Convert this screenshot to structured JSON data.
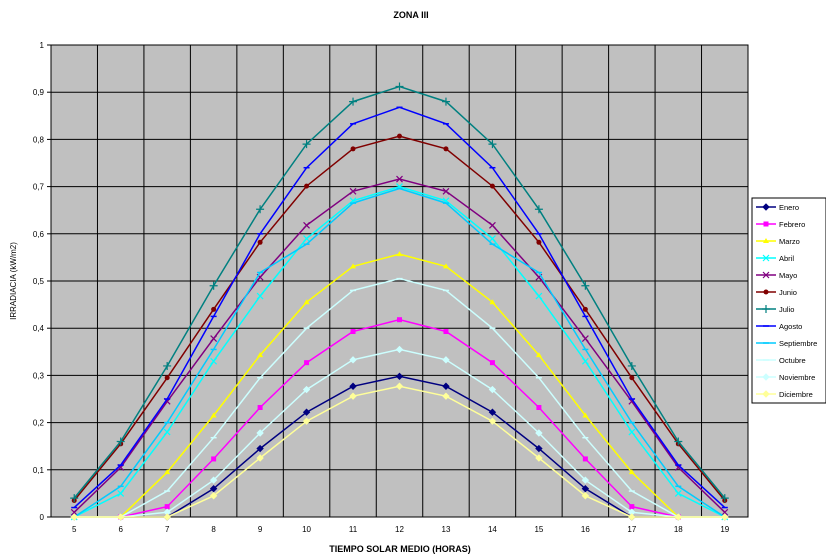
{
  "chart_data": {
    "type": "line",
    "title": "ZONA III",
    "xlabel": "TIEMPO SOLAR MEDIO (HORAS)",
    "ylabel": "IRRADIACIA (kW/m2)",
    "x": [
      5,
      6,
      7,
      8,
      9,
      10,
      11,
      12,
      13,
      14,
      15,
      16,
      17,
      18,
      19
    ],
    "xlim": [
      4.5,
      19.5
    ],
    "ylim": [
      0,
      1
    ],
    "yticks": [
      0,
      0.1,
      0.2,
      0.3,
      0.4,
      0.5,
      0.6,
      0.7,
      0.8,
      0.9,
      1
    ],
    "ytick_labels": [
      "0",
      "0,1",
      "0,2",
      "0,3",
      "0,4",
      "0,5",
      "0,6",
      "0,7",
      "0,8",
      "0,9",
      "1"
    ],
    "xtick_labels": [
      "5",
      "6",
      "7",
      "8",
      "9",
      "10",
      "11",
      "12",
      "13",
      "14",
      "15",
      "16",
      "17",
      "18",
      "19"
    ],
    "grid": true,
    "plot_background": "#c0c0c0",
    "legend_position": "right",
    "series": [
      {
        "name": "Enero",
        "color": "#000080",
        "marker": "diamond",
        "values": [
          0,
          0,
          0,
          0.06,
          0.145,
          0.222,
          0.277,
          0.298,
          0.277,
          0.222,
          0.145,
          0.06,
          0,
          0,
          0
        ]
      },
      {
        "name": "Febrero",
        "color": "#ff00ff",
        "marker": "square",
        "values": [
          0,
          0,
          0.022,
          0.123,
          0.232,
          0.327,
          0.393,
          0.418,
          0.393,
          0.327,
          0.232,
          0.123,
          0.022,
          0,
          0
        ]
      },
      {
        "name": "Marzo",
        "color": "#ffff00",
        "marker": "triangle",
        "values": [
          0,
          0,
          0.095,
          0.215,
          0.343,
          0.455,
          0.531,
          0.557,
          0.531,
          0.455,
          0.343,
          0.215,
          0.095,
          0,
          0
        ]
      },
      {
        "name": "Abril",
        "color": "#00ffff",
        "marker": "x",
        "values": [
          0,
          0.05,
          0.18,
          0.33,
          0.468,
          0.59,
          0.67,
          0.7,
          0.67,
          0.59,
          0.468,
          0.33,
          0.18,
          0.05,
          0
        ]
      },
      {
        "name": "Mayo",
        "color": "#800080",
        "marker": "x",
        "values": [
          0.01,
          0.105,
          0.245,
          0.378,
          0.508,
          0.618,
          0.69,
          0.716,
          0.69,
          0.618,
          0.508,
          0.378,
          0.245,
          0.105,
          0.01
        ]
      },
      {
        "name": "Junio",
        "color": "#800000",
        "marker": "circle",
        "values": [
          0.035,
          0.155,
          0.295,
          0.44,
          0.582,
          0.701,
          0.78,
          0.807,
          0.78,
          0.701,
          0.582,
          0.44,
          0.295,
          0.155,
          0.035
        ]
      },
      {
        "name": "Julio",
        "color": "#008080",
        "marker": "plus",
        "values": [
          0.04,
          0.16,
          0.32,
          0.49,
          0.652,
          0.79,
          0.88,
          0.912,
          0.88,
          0.79,
          0.652,
          0.49,
          0.32,
          0.16,
          0.04
        ]
      },
      {
        "name": "Agosto",
        "color": "#0000ff",
        "marker": "dash",
        "values": [
          0.02,
          0.11,
          0.25,
          0.425,
          0.6,
          0.74,
          0.833,
          0.868,
          0.833,
          0.74,
          0.6,
          0.425,
          0.25,
          0.11,
          0.02
        ]
      },
      {
        "name": "Septiembre",
        "color": "#00ccff",
        "marker": "dash",
        "values": [
          0,
          0.065,
          0.2,
          0.355,
          0.518,
          0.578,
          0.665,
          0.696,
          0.665,
          0.578,
          0.518,
          0.355,
          0.2,
          0.065,
          0
        ]
      },
      {
        "name": "Octubre",
        "color": "#ccffff",
        "marker": "dash",
        "values": [
          0,
          0,
          0.055,
          0.168,
          0.295,
          0.4,
          0.48,
          0.505,
          0.48,
          0.4,
          0.295,
          0.168,
          0.055,
          0,
          0
        ]
      },
      {
        "name": "Noviembre",
        "color": "#ccffff",
        "marker": "diamond",
        "values": [
          0,
          0,
          0.01,
          0.078,
          0.178,
          0.27,
          0.333,
          0.355,
          0.333,
          0.27,
          0.178,
          0.078,
          0.01,
          0,
          0
        ]
      },
      {
        "name": "Diciembre",
        "color": "#ffff99",
        "marker": "diamond",
        "values": [
          0,
          0,
          0,
          0.045,
          0.125,
          0.203,
          0.256,
          0.277,
          0.256,
          0.203,
          0.125,
          0.045,
          0,
          0,
          0
        ]
      }
    ]
  }
}
